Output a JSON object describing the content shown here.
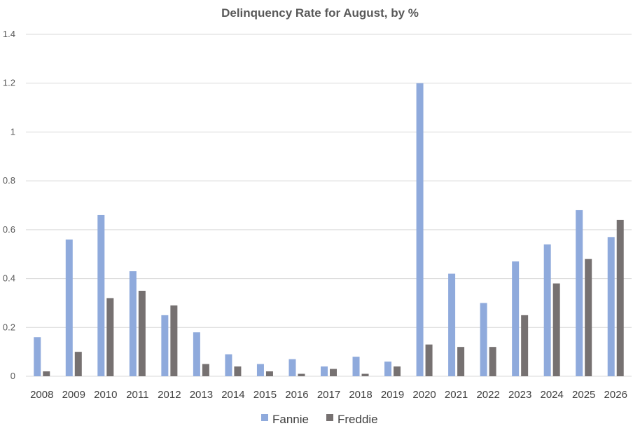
{
  "chart_data": {
    "type": "bar",
    "title": "Delinquency Rate for August, by %",
    "xlabel": "",
    "ylabel": "",
    "ylim": [
      0,
      1.4
    ],
    "yticks": [
      "0",
      "0.2",
      "0.4",
      "0.6",
      "0.8",
      "1",
      "1.2",
      "1.4"
    ],
    "categories": [
      "2008",
      "2009",
      "2010",
      "2011",
      "2012",
      "2013",
      "2014",
      "2015",
      "2016",
      "2017",
      "2018",
      "2019",
      "2020",
      "2021",
      "2022",
      "2023",
      "2024",
      "2025",
      "2026"
    ],
    "series": [
      {
        "name": "Fannie",
        "color": "#8faadc",
        "values": [
          0.16,
          0.56,
          0.66,
          0.43,
          0.25,
          0.18,
          0.09,
          0.05,
          0.07,
          0.04,
          0.08,
          0.06,
          1.2,
          0.42,
          0.3,
          0.47,
          0.54,
          0.68,
          0.57
        ]
      },
      {
        "name": "Freddie",
        "color": "#767171",
        "values": [
          0.02,
          0.1,
          0.32,
          0.35,
          0.29,
          0.05,
          0.04,
          0.02,
          0.01,
          0.03,
          0.01,
          0.04,
          0.13,
          0.12,
          0.12,
          0.25,
          0.38,
          0.48,
          0.64
        ]
      }
    ],
    "grid": true,
    "legend_position": "bottom"
  }
}
